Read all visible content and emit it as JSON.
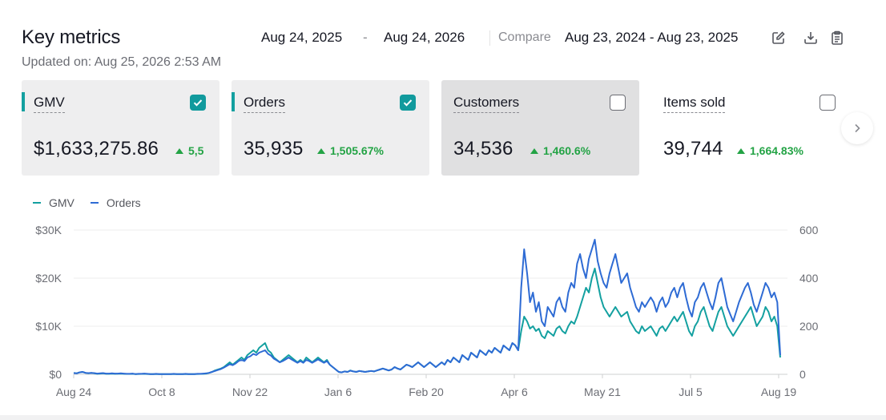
{
  "header": {
    "title": "Key metrics",
    "updated": "Updated on: Aug 25, 2026 2:53 AM",
    "date_start": "Aug 24, 2025",
    "date_dash": "-",
    "date_end": "Aug 24, 2026",
    "compare_label": "Compare",
    "compare_range": "Aug 23, 2024 - Aug 23, 2025",
    "icons": [
      "edit-icon",
      "download-icon",
      "clipboard-icon"
    ]
  },
  "cards": [
    {
      "label": "GMV",
      "value": "$1,633,275.86",
      "delta": "5,5",
      "checked": true
    },
    {
      "label": "Orders",
      "value": "35,935",
      "delta": "1,505.67%",
      "checked": true
    },
    {
      "label": "Customers",
      "value": "34,536",
      "delta": "1,460.6%",
      "checked": false
    },
    {
      "label": "Items sold",
      "value": "39,744",
      "delta": "1,664.83%",
      "checked": false
    }
  ],
  "colors": {
    "gmv": "#13a0a0",
    "orders": "#2e6bd4",
    "delta_up": "#23a345"
  },
  "legend": {
    "gmv": "GMV",
    "orders": "Orders"
  },
  "chart_data": {
    "type": "line",
    "x_ticks": [
      "Aug 24",
      "Oct 8",
      "Nov 22",
      "Jan 6",
      "Feb 20",
      "Apr 6",
      "May 21",
      "Jul 5",
      "Aug 19"
    ],
    "y_left_ticks": [
      "$30K",
      "$20K",
      "$10K",
      "$0"
    ],
    "y_right_ticks": [
      "600",
      "400",
      "200",
      "0"
    ],
    "y_left_lim": [
      0,
      30000
    ],
    "y_right_lim": [
      0,
      600
    ],
    "grid": true,
    "legend_position": "top-left",
    "series": [
      {
        "name": "GMV",
        "axis": "left",
        "values": [
          300,
          200,
          400,
          500,
          300,
          200,
          300,
          200,
          100,
          150,
          200,
          100,
          100,
          150,
          100,
          120,
          150,
          100,
          90,
          80,
          100,
          50,
          60,
          80,
          100,
          60,
          40,
          50,
          60,
          50,
          40,
          50,
          40,
          50,
          60,
          50,
          40,
          50,
          60,
          50,
          40,
          50,
          60,
          80,
          100,
          150,
          300,
          500,
          800,
          1000,
          1200,
          1500,
          2000,
          2500,
          2000,
          2500,
          3000,
          3500,
          3000,
          4000,
          4500,
          5000,
          4500,
          5500,
          6000,
          6500,
          5000,
          4500,
          3500,
          3000,
          2500,
          3000,
          3500,
          4000,
          3500,
          3000,
          2500,
          3000,
          2500,
          3500,
          3000,
          2500,
          3000,
          3500,
          3000,
          2500,
          3000,
          2000,
          1500,
          1000,
          500,
          400,
          600,
          500,
          800,
          600,
          500,
          700,
          600,
          500,
          600,
          700,
          600,
          800,
          1000,
          1200,
          1000,
          800,
          1000,
          1500,
          1200,
          1000,
          1500,
          2000,
          1800,
          1500,
          2000,
          2500,
          2000,
          1500,
          2000,
          2500,
          2000,
          1500,
          2000,
          2500,
          2000,
          3000,
          2500,
          3500,
          3000,
          2500,
          4000,
          3500,
          3000,
          4500,
          4000,
          3500,
          5000,
          4500,
          4000,
          5000,
          4500,
          5500,
          5000,
          4500,
          6000,
          5500,
          5000,
          6500,
          6000,
          5000,
          9000,
          12000,
          11000,
          9500,
          10000,
          9000,
          9500,
          8000,
          7500,
          9000,
          8500,
          8000,
          9500,
          10000,
          9000,
          8500,
          10000,
          11000,
          10500,
          12000,
          14000,
          16000,
          18000,
          17000,
          20000,
          22000,
          19000,
          16000,
          14000,
          13000,
          12000,
          13000,
          14000,
          13000,
          12000,
          12500,
          13000,
          11000,
          10000,
          9000,
          8500,
          10000,
          9000,
          9500,
          10000,
          9000,
          8000,
          9500,
          10000,
          9000,
          10000,
          11000,
          12000,
          11000,
          12000,
          13000,
          11000,
          9000,
          8000,
          10000,
          11000,
          13000,
          14000,
          12000,
          10000,
          9000,
          11000,
          13000,
          14000,
          12000,
          10000,
          9000,
          8000,
          9000,
          10000,
          11000,
          12000,
          13000,
          14000,
          12000,
          10000,
          11000,
          12000,
          14000,
          13000,
          11000,
          12000,
          10000,
          3500
        ]
      },
      {
        "name": "Orders",
        "axis": "right",
        "values": [
          5,
          4,
          8,
          10,
          6,
          5,
          6,
          5,
          3,
          4,
          5,
          3,
          3,
          4,
          3,
          3,
          4,
          3,
          2,
          2,
          3,
          1,
          2,
          2,
          3,
          2,
          1,
          1,
          2,
          1,
          1,
          1,
          1,
          1,
          2,
          1,
          1,
          1,
          2,
          1,
          1,
          1,
          2,
          2,
          3,
          4,
          6,
          10,
          14,
          18,
          22,
          28,
          35,
          42,
          38,
          45,
          55,
          60,
          55,
          70,
          75,
          85,
          80,
          90,
          95,
          100,
          85,
          78,
          65,
          58,
          50,
          55,
          62,
          70,
          62,
          55,
          48,
          55,
          48,
          60,
          55,
          48,
          55,
          62,
          55,
          48,
          55,
          40,
          30,
          20,
          10,
          8,
          12,
          10,
          15,
          12,
          10,
          14,
          12,
          10,
          12,
          14,
          12,
          16,
          20,
          24,
          20,
          16,
          20,
          30,
          24,
          20,
          30,
          40,
          36,
          30,
          40,
          50,
          40,
          30,
          40,
          50,
          40,
          30,
          40,
          50,
          40,
          60,
          50,
          70,
          60,
          50,
          80,
          70,
          60,
          90,
          80,
          70,
          100,
          90,
          80,
          100,
          90,
          110,
          100,
          90,
          120,
          110,
          100,
          130,
          120,
          100,
          360,
          520,
          420,
          300,
          340,
          260,
          300,
          220,
          200,
          280,
          260,
          240,
          300,
          320,
          280,
          260,
          340,
          380,
          360,
          460,
          500,
          440,
          400,
          480,
          520,
          560,
          470,
          420,
          380,
          360,
          420,
          460,
          500,
          440,
          380,
          400,
          420,
          360,
          320,
          280,
          260,
          300,
          280,
          300,
          320,
          300,
          260,
          300,
          320,
          280,
          300,
          340,
          360,
          320,
          360,
          380,
          320,
          270,
          240,
          300,
          320,
          360,
          380,
          340,
          300,
          270,
          320,
          380,
          400,
          340,
          280,
          250,
          220,
          260,
          300,
          330,
          360,
          380,
          340,
          290,
          260,
          300,
          340,
          380,
          360,
          320,
          340,
          300,
          80
        ]
      }
    ]
  }
}
